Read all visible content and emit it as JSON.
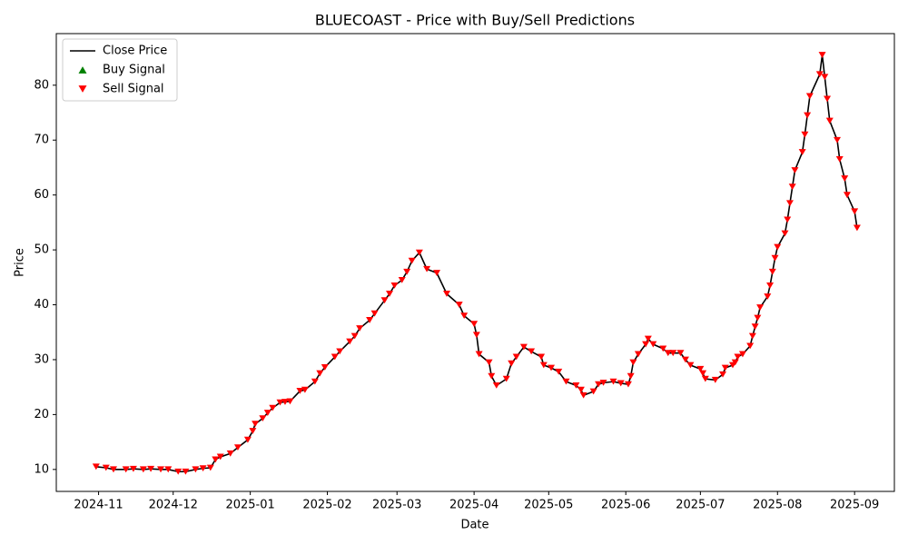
{
  "chart_data": {
    "type": "line",
    "title": "BLUECOAST - Price with Buy/Sell Predictions",
    "x_label": "Date",
    "y_label": "Price",
    "x": [
      "2024-10-31",
      "2024-11-04",
      "2024-11-07",
      "2024-11-12",
      "2024-11-15",
      "2024-11-19",
      "2024-11-22",
      "2024-11-26",
      "2024-11-29",
      "2024-12-03",
      "2024-12-06",
      "2024-12-10",
      "2024-12-13",
      "2024-12-16",
      "2024-12-18",
      "2024-12-20",
      "2024-12-24",
      "2024-12-27",
      "2024-12-31",
      "2025-01-02",
      "2025-01-03",
      "2025-01-06",
      "2025-01-08",
      "2025-01-10",
      "2025-01-13",
      "2025-01-15",
      "2025-01-17",
      "2025-01-21",
      "2025-01-23",
      "2025-01-27",
      "2025-01-29",
      "2025-01-31",
      "2025-02-04",
      "2025-02-06",
      "2025-02-10",
      "2025-02-12",
      "2025-02-14",
      "2025-02-18",
      "2025-02-20",
      "2025-02-24",
      "2025-02-26",
      "2025-02-28",
      "2025-03-03",
      "2025-03-05",
      "2025-03-07",
      "2025-03-10",
      "2025-03-13",
      "2025-03-17",
      "2025-03-21",
      "2025-03-26",
      "2025-03-28",
      "2025-04-01",
      "2025-04-02",
      "2025-04-03",
      "2025-04-07",
      "2025-04-08",
      "2025-04-10",
      "2025-04-14",
      "2025-04-16",
      "2025-04-18",
      "2025-04-21",
      "2025-04-24",
      "2025-04-28",
      "2025-04-29",
      "2025-05-02",
      "2025-05-05",
      "2025-05-08",
      "2025-05-12",
      "2025-05-14",
      "2025-05-15",
      "2025-05-19",
      "2025-05-21",
      "2025-05-23",
      "2025-05-27",
      "2025-05-30",
      "2025-06-02",
      "2025-06-03",
      "2025-06-04",
      "2025-06-06",
      "2025-06-09",
      "2025-06-10",
      "2025-06-12",
      "2025-06-16",
      "2025-06-18",
      "2025-06-20",
      "2025-06-23",
      "2025-06-25",
      "2025-06-27",
      "2025-07-01",
      "2025-07-02",
      "2025-07-03",
      "2025-07-07",
      "2025-07-10",
      "2025-07-11",
      "2025-07-14",
      "2025-07-15",
      "2025-07-16",
      "2025-07-18",
      "2025-07-21",
      "2025-07-22",
      "2025-07-23",
      "2025-07-24",
      "2025-07-25",
      "2025-07-28",
      "2025-07-29",
      "2025-07-30",
      "2025-07-31",
      "2025-08-01",
      "2025-08-04",
      "2025-08-05",
      "2025-08-06",
      "2025-08-07",
      "2025-08-08",
      "2025-08-11",
      "2025-08-12",
      "2025-08-13",
      "2025-08-14",
      "2025-08-18",
      "2025-08-19",
      "2025-08-20",
      "2025-08-21",
      "2025-08-22",
      "2025-08-25",
      "2025-08-26",
      "2025-08-28",
      "2025-08-29",
      "2025-09-01",
      "2025-09-02"
    ],
    "series": [
      {
        "name": "Close Price",
        "color": "#000000",
        "marker": "line",
        "values": [
          10.5,
          10.3,
          10.0,
          10.0,
          10.1,
          10.0,
          10.1,
          10.0,
          10.0,
          9.6,
          9.6,
          10.0,
          10.2,
          10.3,
          11.8,
          12.3,
          12.9,
          14.0,
          15.4,
          17.0,
          18.3,
          19.3,
          20.3,
          21.2,
          22.2,
          22.3,
          22.4,
          24.3,
          24.5,
          26.0,
          27.5,
          28.6,
          30.5,
          31.5,
          33.3,
          34.3,
          35.7,
          37.2,
          38.4,
          40.8,
          42.0,
          43.5,
          44.5,
          46.0,
          48.0,
          49.5,
          46.5,
          45.8,
          42.0,
          40.0,
          38.0,
          36.5,
          34.5,
          31.0,
          29.5,
          27.0,
          25.3,
          26.5,
          29.3,
          30.5,
          32.3,
          31.5,
          30.5,
          29.0,
          28.5,
          27.8,
          26.0,
          25.3,
          24.5,
          23.5,
          24.2,
          25.5,
          25.8,
          26.0,
          25.7,
          25.5,
          27.0,
          29.5,
          31.0,
          32.8,
          33.8,
          32.8,
          32.0,
          31.2,
          31.2,
          31.2,
          30.0,
          29.0,
          28.3,
          27.5,
          26.5,
          26.3,
          27.3,
          28.5,
          29.0,
          29.5,
          30.5,
          31.0,
          32.5,
          34.3,
          36.0,
          37.6,
          39.5,
          41.5,
          43.5,
          46.0,
          48.5,
          50.5,
          53.0,
          55.5,
          58.5,
          61.5,
          64.5,
          67.8,
          71.0,
          74.5,
          78.0,
          82.0,
          85.5,
          81.5,
          77.5,
          73.5,
          70.0,
          66.5,
          63.0,
          60.0,
          57.0,
          54.0
        ]
      },
      {
        "name": "Buy Signal",
        "color": "#008000",
        "marker": "triangle-up",
        "values": [
          null,
          null,
          null,
          null,
          null,
          null,
          null,
          null,
          null,
          null,
          null,
          null,
          null,
          null,
          null,
          null,
          null,
          null,
          null,
          null,
          null,
          null,
          null,
          null,
          null,
          null,
          null,
          null,
          null,
          null,
          null,
          null,
          null,
          null,
          null,
          null,
          null,
          null,
          null,
          null,
          null,
          null,
          null,
          null,
          null,
          null,
          null,
          null,
          null,
          null,
          null,
          null,
          null,
          null,
          null,
          null,
          null,
          null,
          null,
          null,
          null,
          null,
          null,
          null,
          null,
          null,
          null,
          null,
          null,
          null,
          null,
          null,
          null,
          null,
          null,
          null,
          null,
          null,
          null,
          null,
          null,
          null,
          null,
          null,
          null,
          null,
          null,
          null,
          null,
          null,
          null,
          null,
          null,
          null,
          null,
          null,
          null,
          null,
          null,
          null,
          null,
          null,
          null,
          null,
          null,
          null,
          null,
          null,
          null,
          null,
          null,
          null,
          null,
          null,
          null,
          null,
          null,
          null,
          null,
          null,
          null,
          null,
          null,
          null,
          null,
          null,
          null,
          null
        ]
      },
      {
        "name": "Sell Signal",
        "color": "#ff0000",
        "marker": "triangle-down",
        "values": [
          10.5,
          10.3,
          10.0,
          10.0,
          10.1,
          10.0,
          10.1,
          10.0,
          10.0,
          9.6,
          9.6,
          10.0,
          10.2,
          10.3,
          11.8,
          12.3,
          12.9,
          14.0,
          15.4,
          17.0,
          18.3,
          19.3,
          20.3,
          21.2,
          22.2,
          22.3,
          22.4,
          24.3,
          24.5,
          26.0,
          27.5,
          28.6,
          30.5,
          31.5,
          33.3,
          34.3,
          35.7,
          37.2,
          38.4,
          40.8,
          42.0,
          43.5,
          44.5,
          46.0,
          48.0,
          49.5,
          46.5,
          45.8,
          42.0,
          40.0,
          38.0,
          36.5,
          34.5,
          31.0,
          29.5,
          27.0,
          25.3,
          26.5,
          29.3,
          30.5,
          32.3,
          31.5,
          30.5,
          29.0,
          28.5,
          27.8,
          26.0,
          25.3,
          24.5,
          23.5,
          24.2,
          25.5,
          25.8,
          26.0,
          25.7,
          25.5,
          27.0,
          29.5,
          31.0,
          32.8,
          33.8,
          32.8,
          32.0,
          31.2,
          31.2,
          31.2,
          30.0,
          29.0,
          28.3,
          27.5,
          26.5,
          26.3,
          27.3,
          28.5,
          29.0,
          29.5,
          30.5,
          31.0,
          32.5,
          34.3,
          36.0,
          37.6,
          39.5,
          41.5,
          43.5,
          46.0,
          48.5,
          50.5,
          53.0,
          55.5,
          58.5,
          61.5,
          64.5,
          67.8,
          71.0,
          74.5,
          78.0,
          82.0,
          85.5,
          81.5,
          77.5,
          73.5,
          70.0,
          66.5,
          63.0,
          60.0,
          57.0,
          54.0
        ]
      }
    ],
    "xlim": [
      "2024-10-15",
      "2025-09-17"
    ],
    "xticks": [
      {
        "value": "2024-11-01",
        "label": "2024-11"
      },
      {
        "value": "2024-12-01",
        "label": "2024-12"
      },
      {
        "value": "2025-01-01",
        "label": "2025-01"
      },
      {
        "value": "2025-02-01",
        "label": "2025-02"
      },
      {
        "value": "2025-03-01",
        "label": "2025-03"
      },
      {
        "value": "2025-04-01",
        "label": "2025-04"
      },
      {
        "value": "2025-05-01",
        "label": "2025-05"
      },
      {
        "value": "2025-06-01",
        "label": "2025-06"
      },
      {
        "value": "2025-07-01",
        "label": "2025-07"
      },
      {
        "value": "2025-08-01",
        "label": "2025-08"
      },
      {
        "value": "2025-09-01",
        "label": "2025-09"
      }
    ],
    "ylim": [
      6.0,
      89.4
    ],
    "yticks": [
      10,
      20,
      30,
      40,
      50,
      60,
      70,
      80
    ],
    "grid": false,
    "legend": "upper-left"
  }
}
